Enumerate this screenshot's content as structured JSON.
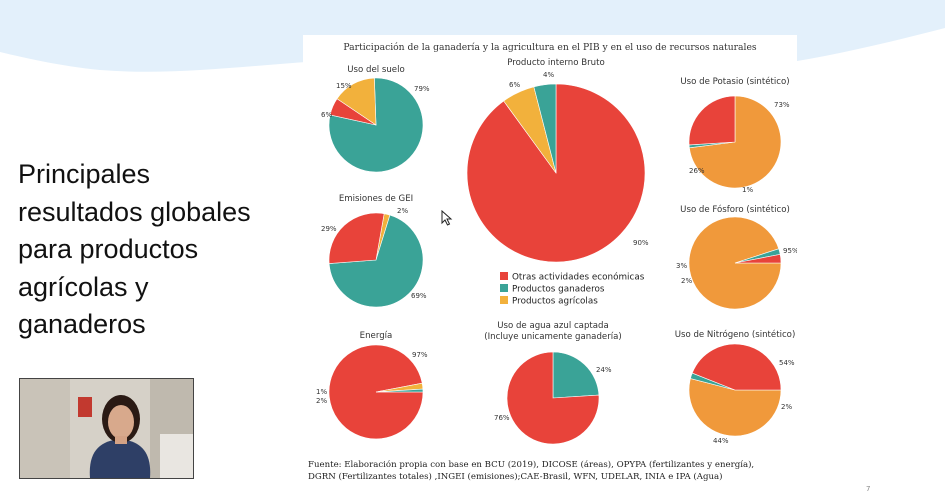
{
  "slide": {
    "heading_lines": [
      "Principales",
      "resultados globales",
      "para productos",
      "agrícolas y",
      "ganaderos"
    ],
    "page_number": "7"
  },
  "figure": {
    "title": "Participación de la ganadería y la agricultura  en el PIB y en el uso de recursos naturales",
    "source_lines": [
      "Fuente: Elaboración propia con base en BCU (2019), DICOSE (áreas), OPYPA (fertilizantes y  energía),",
      "DGRN (Fertilizantes totales) ,INGEI (emisiones);CAE-Brasil, WFN, UDELAR, INIA e IPA (Agua)"
    ]
  },
  "colors": {
    "otras": "#e8433a",
    "ganaderos": "#3aa397",
    "agricolas": "#f2b13c",
    "orange": "#f0993b",
    "wave": "#e3f0fb"
  },
  "chart_data": {
    "type": "pie",
    "legend": {
      "position": "center",
      "entries": [
        "Otras actividades económicas",
        "Productos ganaderos",
        "Productos agrícolas"
      ]
    },
    "charts": [
      {
        "title_lines": [
          "Uso del suelo"
        ],
        "slices": [
          {
            "label": "79%",
            "value": 79,
            "color": "#3aa397"
          },
          {
            "label": "6%",
            "value": 6,
            "color": "#e8433a"
          },
          {
            "label": "15%",
            "value": 15,
            "color": "#f2b13c"
          }
        ]
      },
      {
        "title_lines": [
          "Producto interno Bruto"
        ],
        "slices": [
          {
            "label": "90%",
            "value": 90,
            "color": "#e8433a"
          },
          {
            "label": "6%",
            "value": 6,
            "color": "#f2b13c"
          },
          {
            "label": "4%",
            "value": 4,
            "color": "#3aa397"
          }
        ]
      },
      {
        "title_lines": [
          "Uso de Potasio (sintético)"
        ],
        "slices": [
          {
            "label": "73%",
            "value": 73,
            "color": "#f0993b"
          },
          {
            "label": "1%",
            "value": 1,
            "color": "#3aa397"
          },
          {
            "label": "26%",
            "value": 26,
            "color": "#e8433a"
          }
        ]
      },
      {
        "title_lines": [
          "Emisiones de GEI"
        ],
        "slices": [
          {
            "label": "2%",
            "value": 2,
            "color": "#f2b13c"
          },
          {
            "label": "69%",
            "value": 69,
            "color": "#3aa397"
          },
          {
            "label": "29%",
            "value": 29,
            "color": "#e8433a"
          }
        ]
      },
      {
        "title_lines": [
          "Uso de Fósforo (sintético)"
        ],
        "slices": [
          {
            "label": "95%",
            "value": 95,
            "color": "#f0993b"
          },
          {
            "label": "2%",
            "value": 2,
            "color": "#3aa397"
          },
          {
            "label": "3%",
            "value": 3,
            "color": "#e8433a"
          }
        ]
      },
      {
        "title_lines": [
          "Energía"
        ],
        "slices": [
          {
            "label": "97%",
            "value": 97,
            "color": "#e8433a"
          },
          {
            "label": "2%",
            "value": 2,
            "color": "#f2b13c"
          },
          {
            "label": "1%",
            "value": 1,
            "color": "#3aa397"
          }
        ]
      },
      {
        "title_lines": [
          "Uso de agua azul captada",
          "(Incluye unicamente ganadería)"
        ],
        "slices": [
          {
            "label": "24%",
            "value": 24,
            "color": "#3aa397"
          },
          {
            "label": "76%",
            "value": 76,
            "color": "#e8433a"
          }
        ]
      },
      {
        "title_lines": [
          "Uso de Nitrógeno (sintético)"
        ],
        "slices": [
          {
            "label": "54%",
            "value": 54,
            "color": "#f0993b"
          },
          {
            "label": "2%",
            "value": 2,
            "color": "#3aa397"
          },
          {
            "label": "44%",
            "value": 44,
            "color": "#e8433a"
          }
        ]
      }
    ]
  }
}
